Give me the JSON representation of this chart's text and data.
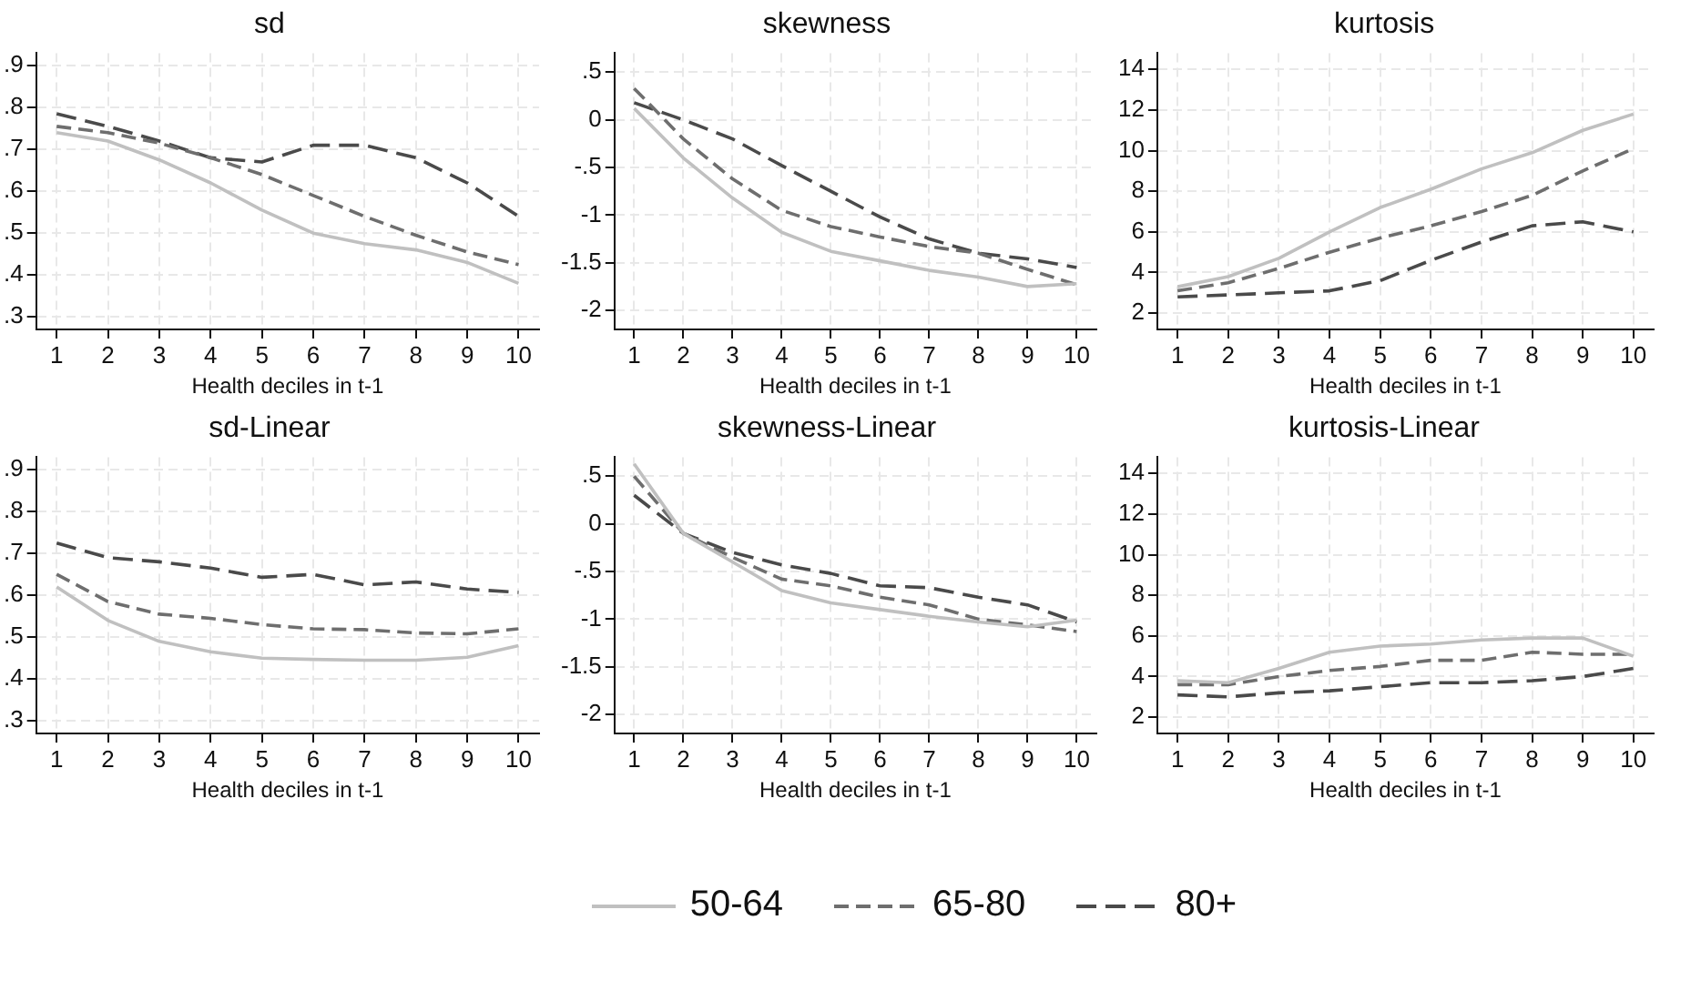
{
  "chart_data": [
    {
      "type": "line",
      "title": "sd",
      "xlabel": "Health deciles in t-1",
      "x": [
        1,
        2,
        3,
        4,
        5,
        6,
        7,
        8,
        9,
        10
      ],
      "xlim": [
        0.6,
        10.4
      ],
      "xticks": [
        1,
        2,
        3,
        4,
        5,
        6,
        7,
        8,
        9,
        10
      ],
      "ylim": [
        0.27,
        0.93
      ],
      "yticks": [
        {
          "value": 0.3,
          "label": ".3"
        },
        {
          "value": 0.4,
          "label": ".4"
        },
        {
          "value": 0.5,
          "label": ".5"
        },
        {
          "value": 0.6,
          "label": ".6"
        },
        {
          "value": 0.7,
          "label": ".7"
        },
        {
          "value": 0.8,
          "label": ".8"
        },
        {
          "value": 0.9,
          "label": ".9"
        }
      ],
      "grid": true,
      "legend": "bottom",
      "marker": "none",
      "series": [
        {
          "name": "50-64",
          "color": "#c0c0c0",
          "line_style": "solid",
          "values": [
            0.74,
            0.72,
            0.675,
            0.62,
            0.555,
            0.5,
            0.475,
            0.46,
            0.43,
            0.38
          ]
        },
        {
          "name": "65-80",
          "color": "#6e6e6e",
          "line_style": "dashed",
          "values": [
            0.755,
            0.74,
            0.715,
            0.68,
            0.64,
            0.59,
            0.54,
            0.495,
            0.455,
            0.425
          ]
        },
        {
          "name": "80+",
          "color": "#4a4a4a",
          "line_style": "dashed",
          "values": [
            0.785,
            0.755,
            0.72,
            0.68,
            0.67,
            0.71,
            0.71,
            0.68,
            0.62,
            0.54
          ]
        }
      ]
    },
    {
      "type": "line",
      "title": "skewness",
      "xlabel": "Health deciles in t-1",
      "x": [
        1,
        2,
        3,
        4,
        5,
        6,
        7,
        8,
        9,
        10
      ],
      "xlim": [
        0.6,
        10.4
      ],
      "xticks": [
        1,
        2,
        3,
        4,
        5,
        6,
        7,
        8,
        9,
        10
      ],
      "ylim": [
        -2.2,
        0.7
      ],
      "yticks": [
        -2,
        {
          "value": -1.5,
          "label": "-1.5"
        },
        -1,
        {
          "value": -0.5,
          "label": "-.5"
        },
        0,
        {
          "value": 0.5,
          "label": ".5"
        }
      ],
      "grid": true,
      "marker": "none",
      "series": [
        {
          "color": "#c0c0c0",
          "line_style": "solid",
          "values": [
            0.12,
            -0.4,
            -0.82,
            -1.18,
            -1.38,
            -1.48,
            -1.58,
            -1.65,
            -1.75,
            -1.72
          ]
        },
        {
          "color": "#6e6e6e",
          "line_style": "dashed",
          "values": [
            0.33,
            -0.2,
            -0.62,
            -0.95,
            -1.12,
            -1.23,
            -1.33,
            -1.4,
            -1.57,
            -1.73
          ]
        },
        {
          "color": "#4a4a4a",
          "line_style": "dashed",
          "values": [
            0.18,
            0,
            -0.2,
            -0.48,
            -0.75,
            -1.02,
            -1.25,
            -1.4,
            -1.46,
            -1.55
          ]
        }
      ]
    },
    {
      "type": "line",
      "title": "kurtosis",
      "xlabel": "Health deciles in t-1",
      "x": [
        1,
        2,
        3,
        4,
        5,
        6,
        7,
        8,
        9,
        10
      ],
      "xlim": [
        0.6,
        10.4
      ],
      "xticks": [
        1,
        2,
        3,
        4,
        5,
        6,
        7,
        8,
        9,
        10
      ],
      "ylim": [
        1.2,
        14.8
      ],
      "yticks": [
        2,
        4,
        6,
        8,
        10,
        12,
        14
      ],
      "grid": true,
      "marker": "none",
      "series": [
        {
          "color": "#c0c0c0",
          "line_style": "solid",
          "values": [
            3.3,
            3.8,
            4.7,
            6.0,
            7.2,
            8.1,
            9.1,
            9.9,
            11.0,
            11.8
          ]
        },
        {
          "color": "#6e6e6e",
          "line_style": "dashed",
          "values": [
            3.1,
            3.5,
            4.2,
            5.0,
            5.7,
            6.3,
            7.0,
            7.8,
            9.0,
            10.1
          ]
        },
        {
          "color": "#4a4a4a",
          "line_style": "dashed",
          "values": [
            2.8,
            2.9,
            3.0,
            3.1,
            3.6,
            4.6,
            5.5,
            6.3,
            6.5,
            6.0
          ]
        }
      ]
    },
    {
      "type": "line",
      "title": "sd-Linear",
      "xlabel": "Health deciles in t-1",
      "x": [
        1,
        2,
        3,
        4,
        5,
        6,
        7,
        8,
        9,
        10
      ],
      "xlim": [
        0.6,
        10.4
      ],
      "xticks": [
        1,
        2,
        3,
        4,
        5,
        6,
        7,
        8,
        9,
        10
      ],
      "ylim": [
        0.27,
        0.93
      ],
      "yticks": [
        {
          "value": 0.3,
          "label": ".3"
        },
        {
          "value": 0.4,
          "label": ".4"
        },
        {
          "value": 0.5,
          "label": ".5"
        },
        {
          "value": 0.6,
          "label": ".6"
        },
        {
          "value": 0.7,
          "label": ".7"
        },
        {
          "value": 0.8,
          "label": ".8"
        },
        {
          "value": 0.9,
          "label": ".9"
        }
      ],
      "grid": true,
      "marker": "none",
      "series": [
        {
          "color": "#c0c0c0",
          "line_style": "solid",
          "values": [
            0.62,
            0.54,
            0.49,
            0.465,
            0.45,
            0.447,
            0.445,
            0.445,
            0.452,
            0.48
          ]
        },
        {
          "color": "#6e6e6e",
          "line_style": "dashed",
          "values": [
            0.65,
            0.585,
            0.555,
            0.545,
            0.53,
            0.52,
            0.518,
            0.51,
            0.508,
            0.52
          ]
        },
        {
          "color": "#4a4a4a",
          "line_style": "dashed",
          "values": [
            0.725,
            0.69,
            0.68,
            0.665,
            0.643,
            0.65,
            0.625,
            0.632,
            0.615,
            0.607
          ]
        }
      ]
    },
    {
      "type": "line",
      "title": "skewness-Linear",
      "xlabel": "Health deciles in t-1",
      "x": [
        1,
        2,
        3,
        4,
        5,
        6,
        7,
        8,
        9,
        10
      ],
      "xlim": [
        0.6,
        10.4
      ],
      "xticks": [
        1,
        2,
        3,
        4,
        5,
        6,
        7,
        8,
        9,
        10
      ],
      "ylim": [
        -2.2,
        0.7
      ],
      "yticks": [
        -2,
        {
          "value": -1.5,
          "label": "-1.5"
        },
        -1,
        {
          "value": -0.5,
          "label": "-.5"
        },
        0,
        {
          "value": 0.5,
          "label": ".5"
        }
      ],
      "grid": true,
      "marker": "none",
      "series": [
        {
          "color": "#c0c0c0",
          "line_style": "solid",
          "values": [
            0.63,
            -0.1,
            -0.4,
            -0.7,
            -0.83,
            -0.9,
            -0.97,
            -1.03,
            -1.08,
            -1.01
          ]
        },
        {
          "color": "#6e6e6e",
          "line_style": "dashed",
          "values": [
            0.5,
            -0.1,
            -0.35,
            -0.58,
            -0.65,
            -0.77,
            -0.85,
            -1.0,
            -1.06,
            -1.13
          ]
        },
        {
          "color": "#4a4a4a",
          "line_style": "dashed",
          "values": [
            0.3,
            -0.1,
            -0.3,
            -0.43,
            -0.52,
            -0.65,
            -0.67,
            -0.77,
            -0.85,
            -1.03
          ]
        }
      ]
    },
    {
      "type": "line",
      "title": "kurtosis-Linear",
      "xlabel": "Health deciles in t-1",
      "x": [
        1,
        2,
        3,
        4,
        5,
        6,
        7,
        8,
        9,
        10
      ],
      "xlim": [
        0.6,
        10.4
      ],
      "xticks": [
        1,
        2,
        3,
        4,
        5,
        6,
        7,
        8,
        9,
        10
      ],
      "ylim": [
        1.2,
        14.8
      ],
      "yticks": [
        2,
        4,
        6,
        8,
        10,
        12,
        14
      ],
      "grid": true,
      "marker": "none",
      "series": [
        {
          "color": "#c0c0c0",
          "line_style": "solid",
          "values": [
            3.8,
            3.7,
            4.4,
            5.2,
            5.5,
            5.6,
            5.8,
            5.9,
            5.9,
            5.0
          ]
        },
        {
          "color": "#6e6e6e",
          "line_style": "dashed",
          "values": [
            3.6,
            3.6,
            4.0,
            4.3,
            4.5,
            4.8,
            4.8,
            5.2,
            5.1,
            5.1
          ]
        },
        {
          "color": "#4a4a4a",
          "line_style": "dashed",
          "values": [
            3.1,
            3.0,
            3.2,
            3.3,
            3.5,
            3.7,
            3.7,
            3.8,
            4.0,
            4.4
          ]
        }
      ]
    }
  ]
}
